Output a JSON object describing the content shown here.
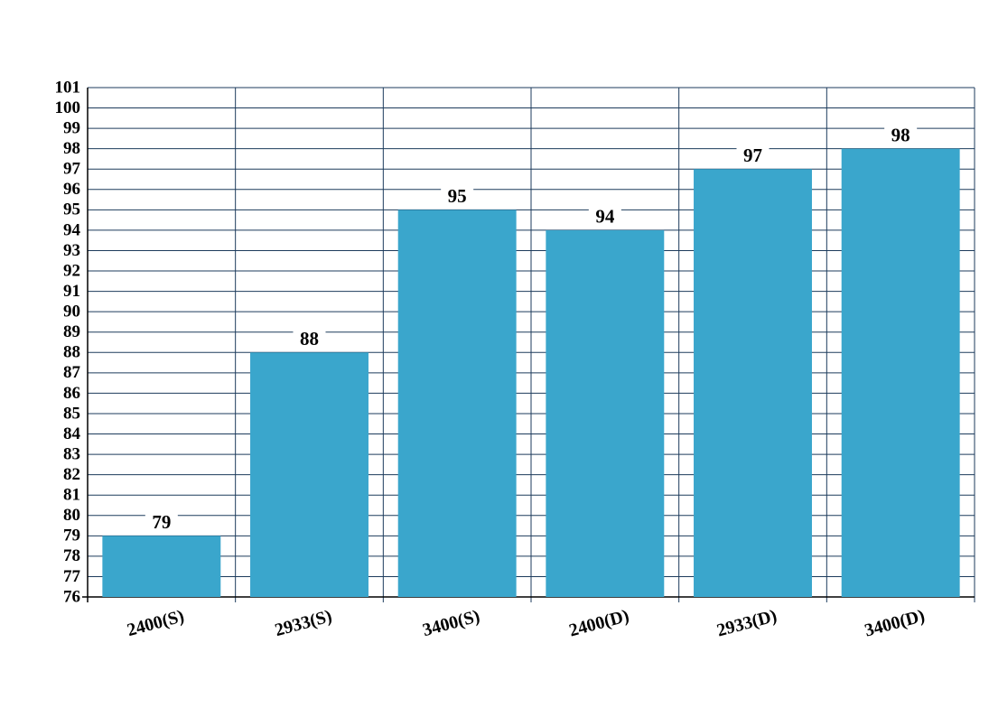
{
  "chart_data": {
    "type": "bar",
    "categories": [
      "2400(S)",
      "2933(S)",
      "3400(S)",
      "2400(D)",
      "2933(D)",
      "3400(D)"
    ],
    "values": [
      79,
      88,
      95,
      94,
      97,
      98
    ],
    "color": "#3aa6cc",
    "ylim": [
      76,
      101
    ],
    "yticks": [
      76,
      77,
      78,
      79,
      80,
      81,
      82,
      83,
      84,
      85,
      86,
      87,
      88,
      89,
      90,
      91,
      92,
      93,
      94,
      95,
      96,
      97,
      98,
      99,
      100,
      101
    ],
    "grid": true
  }
}
